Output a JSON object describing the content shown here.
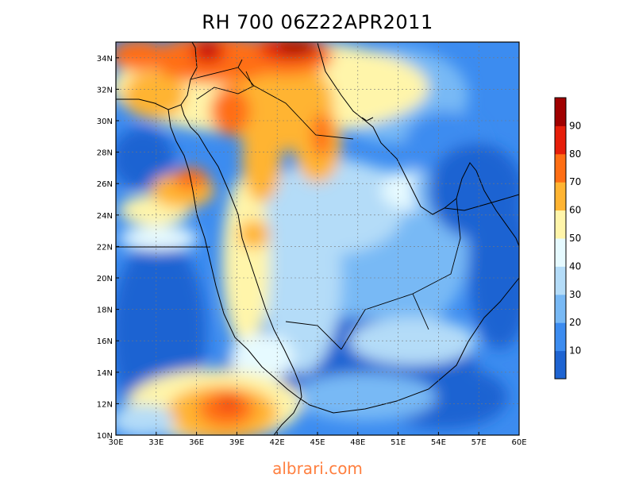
{
  "title": "RH 700 06Z22APR2011",
  "watermark": "albrari.com",
  "map": {
    "lon_range": [
      30,
      60
    ],
    "lat_range": [
      10,
      35
    ],
    "x_ticks": [
      "30E",
      "33E",
      "36E",
      "39E",
      "42E",
      "45E",
      "48E",
      "51E",
      "54E",
      "57E",
      "60E"
    ],
    "y_ticks": [
      "10N",
      "12N",
      "14N",
      "16N",
      "18N",
      "20N",
      "22N",
      "24N",
      "26N",
      "28N",
      "30N",
      "32N",
      "34N"
    ],
    "gridlines": "dotted"
  },
  "colorbar": {
    "labels": [
      "10",
      "20",
      "30",
      "40",
      "50",
      "60",
      "70",
      "80",
      "90"
    ],
    "colors": [
      "#1e64d2",
      "#3c8cf0",
      "#78b9f5",
      "#b4dcf8",
      "#e6faff",
      "#fff5aa",
      "#ffb432",
      "#ff6e14",
      "#e61e0a",
      "#a00000"
    ]
  }
}
